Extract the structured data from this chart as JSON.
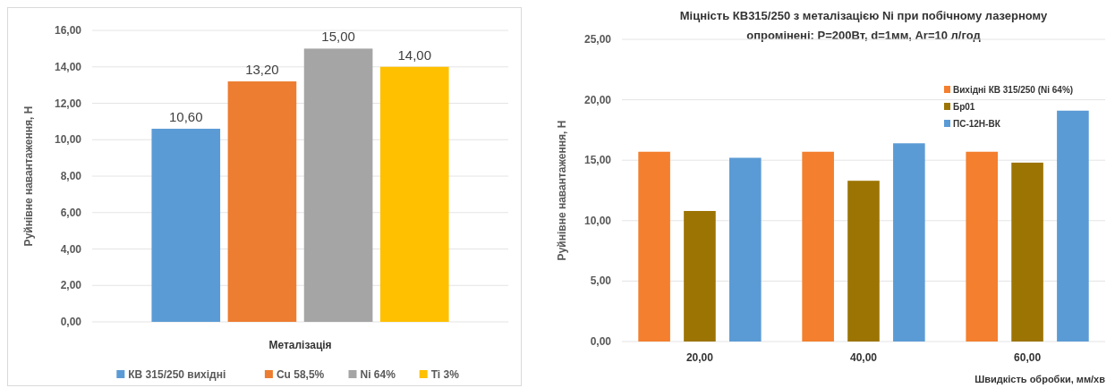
{
  "chart_data": [
    {
      "type": "bar",
      "xlabel": "Металізація",
      "ylabel": "Руйнівне навантаження, Н",
      "categories": [
        null
      ],
      "series": [
        {
          "name": "КВ 315/250 вихідні",
          "color": "#5b9bd5",
          "values": [
            10.6
          ],
          "value_labels": [
            "10,60"
          ]
        },
        {
          "name": "Cu 58,5%",
          "color": "#ed7d31",
          "values": [
            13.2
          ],
          "value_labels": [
            "13,20"
          ]
        },
        {
          "name": "Ni 64%",
          "color": "#a5a5a5",
          "values": [
            15.0
          ],
          "value_labels": [
            "15,00"
          ]
        },
        {
          "name": "Ti 3%",
          "color": "#ffc000",
          "values": [
            14.0
          ],
          "value_labels": [
            "14,00"
          ]
        }
      ],
      "ylim": [
        0,
        16
      ],
      "yticks": [
        {
          "value": 0,
          "label": "0,00"
        },
        {
          "value": 2,
          "label": "2,00"
        },
        {
          "value": 4,
          "label": "4,00"
        },
        {
          "value": 6,
          "label": "6,00"
        },
        {
          "value": 8,
          "label": "8,00"
        },
        {
          "value": 10,
          "label": "10,00"
        },
        {
          "value": 12,
          "label": "12,00"
        },
        {
          "value": 14,
          "label": "14,00"
        },
        {
          "value": 16,
          "label": "16,00"
        }
      ],
      "grid": "y",
      "legend": "bottom"
    },
    {
      "type": "bar",
      "title": "Міцність КВ315/250 з металізацією Ni при побічному лазерному опромінені: P=200Вт, d=1мм, Ar=10 л/год",
      "xlabel": "Швидкість обробки, мм/хв",
      "ylabel": "Руйнівне навантаження, Н",
      "categories": [
        "20,00",
        "40,00",
        "60,00"
      ],
      "series": [
        {
          "name": "Вихідні КВ 315/250  (Ni 64%)",
          "color": "#f47f2e",
          "values": [
            15.7,
            15.7,
            15.7
          ]
        },
        {
          "name": "Бр01",
          "color": "#9c7404",
          "values": [
            10.8,
            13.3,
            14.8
          ]
        },
        {
          "name": "ПС-12Н-ВК",
          "color": "#5b9bd5",
          "values": [
            15.2,
            16.4,
            19.1
          ]
        }
      ],
      "ylim": [
        0,
        25
      ],
      "yticks": [
        {
          "value": 0,
          "label": "0,00"
        },
        {
          "value": 5,
          "label": "5,00"
        },
        {
          "value": 10,
          "label": "10,00"
        },
        {
          "value": 15,
          "label": "15,00"
        },
        {
          "value": 20,
          "label": "20,00"
        },
        {
          "value": 25,
          "label": "25,00"
        }
      ],
      "grid": "y",
      "legend": "top right"
    }
  ]
}
